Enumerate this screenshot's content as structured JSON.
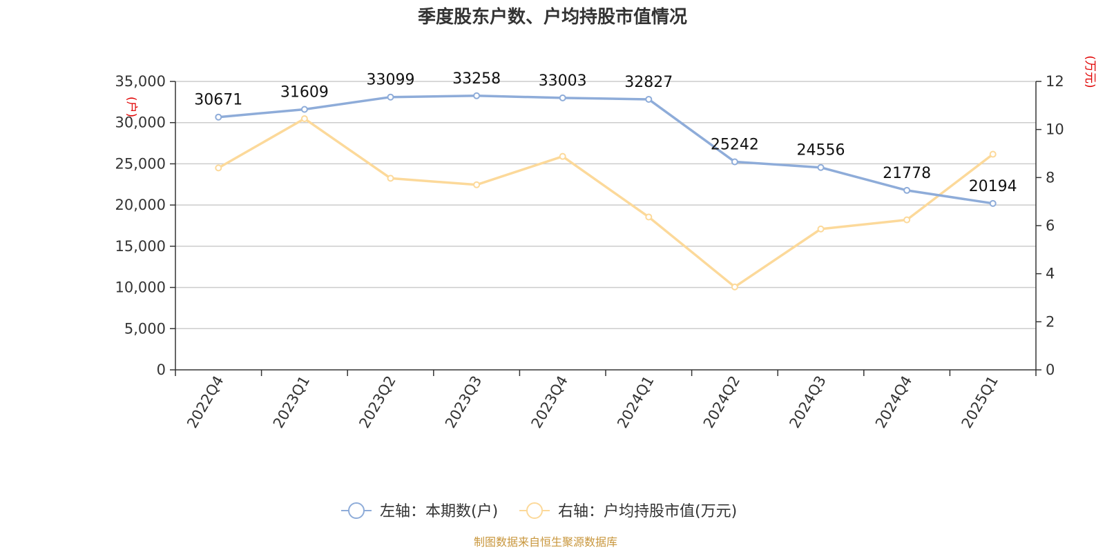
{
  "title": "季度股东户数、户均持股市值情况",
  "source": "制图数据来自恒生聚源数据库",
  "colors": {
    "series1": "#8eacd9",
    "series2": "#fcd99a",
    "axis": "#333333",
    "grid": "#cccccc",
    "unit": "#e00000",
    "source": "#c8963c"
  },
  "chart_data": {
    "type": "line",
    "categories": [
      "2022Q4",
      "2023Q1",
      "2023Q2",
      "2023Q3",
      "2023Q4",
      "2024Q1",
      "2024Q2",
      "2024Q3",
      "2024Q4",
      "2025Q1"
    ],
    "series": [
      {
        "name": "左轴：本期数(户)",
        "axis": "left",
        "values": [
          30671,
          31609,
          33099,
          33258,
          33003,
          32827,
          25242,
          24556,
          21778,
          20194
        ],
        "labels": [
          "30671",
          "31609",
          "33099",
          "33258",
          "33003",
          "32827",
          "25242",
          "24556",
          "21778",
          "20194"
        ]
      },
      {
        "name": "右轴：户均持股市值(万元)",
        "axis": "right",
        "values": [
          8.4,
          10.45,
          7.97,
          7.7,
          8.88,
          6.36,
          3.45,
          5.86,
          6.24,
          8.97
        ]
      }
    ],
    "yleft": {
      "unit": "(户)",
      "ylim": [
        0,
        35000
      ],
      "ticks": [
        "0",
        "5,000",
        "10,000",
        "15,000",
        "20,000",
        "25,000",
        "30,000",
        "35,000"
      ]
    },
    "yright": {
      "unit": "(万元)",
      "ylim": [
        0,
        12
      ],
      "ticks": [
        "0",
        "2",
        "4",
        "6",
        "8",
        "10",
        "12"
      ]
    },
    "grid": true,
    "legend": "bottom"
  }
}
